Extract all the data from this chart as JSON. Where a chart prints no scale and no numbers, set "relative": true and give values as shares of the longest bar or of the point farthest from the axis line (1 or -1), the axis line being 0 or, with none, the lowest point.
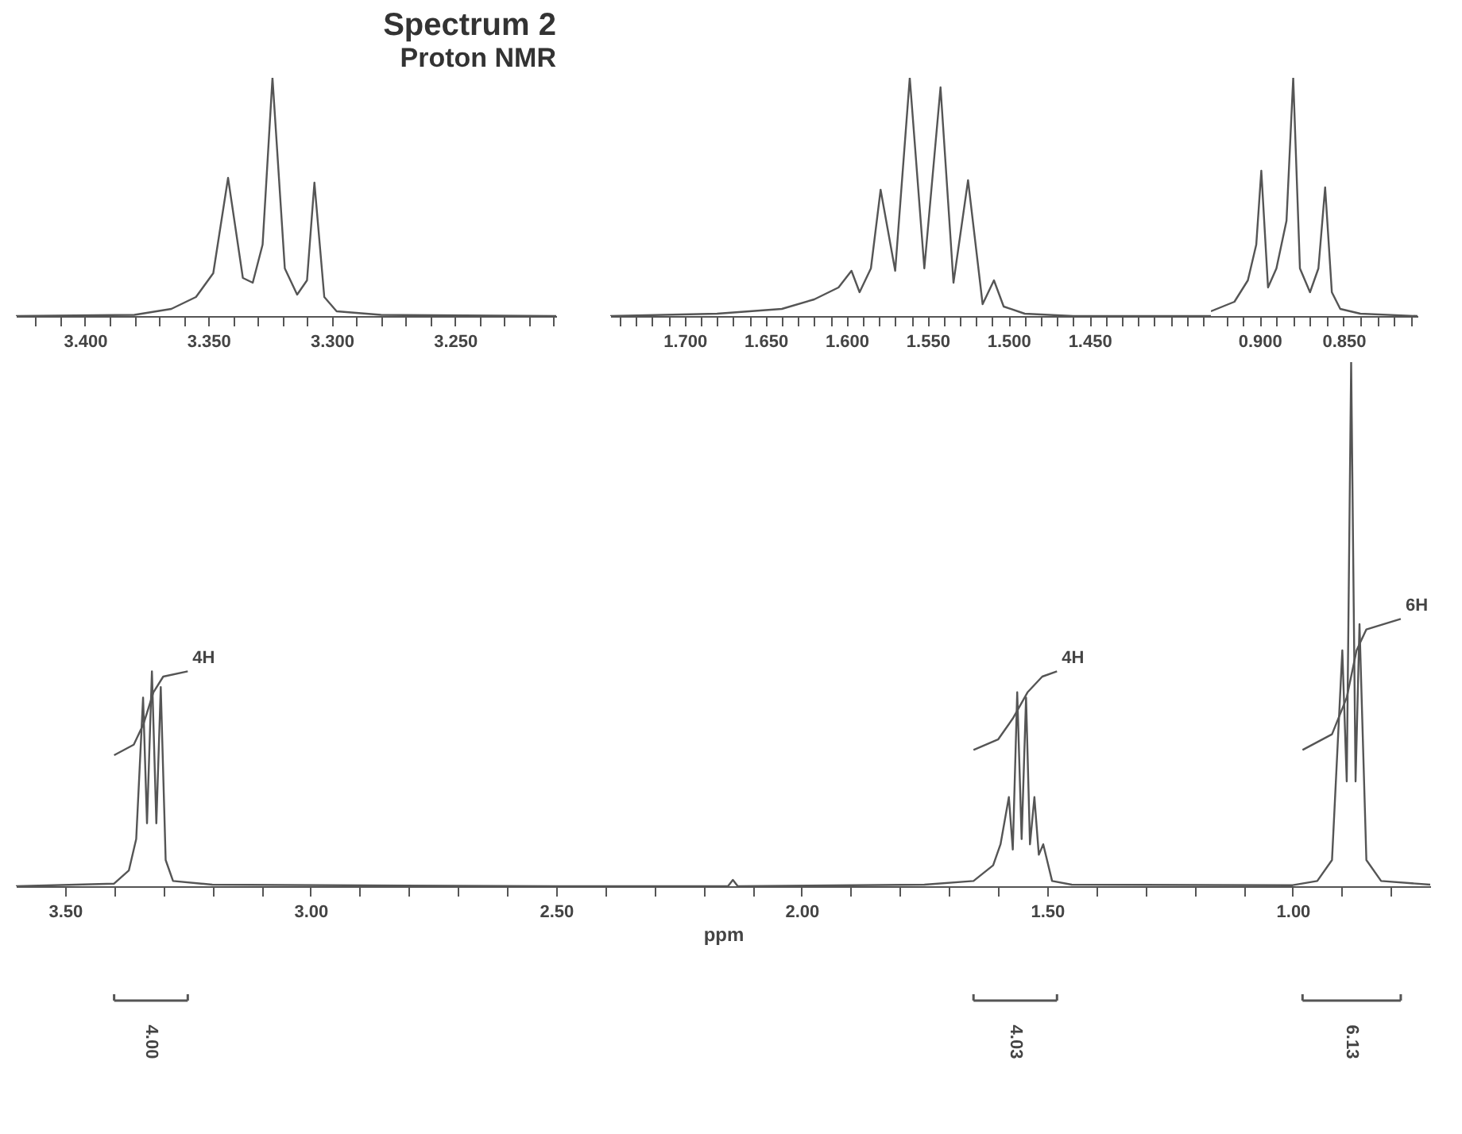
{
  "chart_data": [
    {
      "type": "line",
      "title": "Spectrum 2",
      "subtitle": "Proton NMR",
      "relative": true,
      "marker": "none",
      "grid": false,
      "xlim": [
        3.428,
        3.209
      ],
      "xticks": [
        {
          "value": 3.42,
          "label": null
        },
        {
          "value": 3.41,
          "label": null
        },
        {
          "value": 3.4,
          "label": "3.400"
        },
        {
          "value": 3.39,
          "label": null
        },
        {
          "value": 3.38,
          "label": null
        },
        {
          "value": 3.37,
          "label": null
        },
        {
          "value": 3.36,
          "label": null
        },
        {
          "value": 3.35,
          "label": "3.350"
        },
        {
          "value": 3.34,
          "label": null
        },
        {
          "value": 3.33,
          "label": null
        },
        {
          "value": 3.32,
          "label": null
        },
        {
          "value": 3.31,
          "label": null
        },
        {
          "value": 3.3,
          "label": "3.300"
        },
        {
          "value": 3.29,
          "label": null
        },
        {
          "value": 3.28,
          "label": null
        },
        {
          "value": 3.27,
          "label": null
        },
        {
          "value": 3.26,
          "label": null
        },
        {
          "value": 3.25,
          "label": "3.250"
        },
        {
          "value": 3.24,
          "label": null
        },
        {
          "value": 3.23,
          "label": null
        },
        {
          "value": 3.22,
          "label": null
        },
        {
          "value": 3.21,
          "label": null
        }
      ],
      "series": [
        {
          "color": "#555555",
          "x": [
            3.428,
            3.38,
            3.365,
            3.355,
            3.348,
            3.342,
            3.336,
            3.332,
            3.328,
            3.324,
            3.319,
            3.314,
            3.31,
            3.307,
            3.303,
            3.298,
            3.28,
            3.209
          ],
          "values": [
            0.0,
            0.005,
            0.03,
            0.08,
            0.18,
            0.58,
            0.16,
            0.14,
            0.3,
            1.0,
            0.2,
            0.09,
            0.15,
            0.56,
            0.08,
            0.02,
            0.005,
            0.0
          ]
        }
      ]
    },
    {
      "type": "line",
      "relative": true,
      "marker": "none",
      "grid": false,
      "xlim": [
        1.746,
        1.375
      ],
      "xticks": [
        {
          "value": 1.74,
          "label": null
        },
        {
          "value": 1.73,
          "label": null
        },
        {
          "value": 1.72,
          "label": null
        },
        {
          "value": 1.71,
          "label": null
        },
        {
          "value": 1.7,
          "label": "1.700"
        },
        {
          "value": 1.69,
          "label": null
        },
        {
          "value": 1.68,
          "label": null
        },
        {
          "value": 1.67,
          "label": null
        },
        {
          "value": 1.66,
          "label": null
        },
        {
          "value": 1.65,
          "label": "1.650"
        },
        {
          "value": 1.64,
          "label": null
        },
        {
          "value": 1.63,
          "label": null
        },
        {
          "value": 1.62,
          "label": null
        },
        {
          "value": 1.61,
          "label": null
        },
        {
          "value": 1.6,
          "label": "1.600"
        },
        {
          "value": 1.59,
          "label": null
        },
        {
          "value": 1.58,
          "label": null
        },
        {
          "value": 1.57,
          "label": null
        },
        {
          "value": 1.56,
          "label": null
        },
        {
          "value": 1.55,
          "label": "1.550"
        },
        {
          "value": 1.54,
          "label": null
        },
        {
          "value": 1.53,
          "label": null
        },
        {
          "value": 1.52,
          "label": null
        },
        {
          "value": 1.51,
          "label": null
        },
        {
          "value": 1.5,
          "label": "1.500"
        },
        {
          "value": 1.49,
          "label": null
        },
        {
          "value": 1.48,
          "label": null
        },
        {
          "value": 1.47,
          "label": null
        },
        {
          "value": 1.46,
          "label": null
        },
        {
          "value": 1.45,
          "label": "1.450"
        },
        {
          "value": 1.44,
          "label": null
        },
        {
          "value": 1.43,
          "label": null
        },
        {
          "value": 1.42,
          "label": null
        },
        {
          "value": 1.41,
          "label": null
        },
        {
          "value": 1.4,
          "label": null
        },
        {
          "value": 1.39,
          "label": null
        },
        {
          "value": 1.38,
          "label": null
        }
      ],
      "series": [
        {
          "color": "#555555",
          "x": [
            1.746,
            1.68,
            1.64,
            1.62,
            1.605,
            1.597,
            1.592,
            1.585,
            1.579,
            1.57,
            1.561,
            1.552,
            1.542,
            1.534,
            1.525,
            1.516,
            1.509,
            1.503,
            1.49,
            1.46,
            1.375
          ],
          "values": [
            0.0,
            0.01,
            0.03,
            0.07,
            0.12,
            0.19,
            0.1,
            0.2,
            0.53,
            0.19,
            1.0,
            0.2,
            0.96,
            0.14,
            0.57,
            0.05,
            0.15,
            0.04,
            0.01,
            0.0,
            0.0
          ]
        }
      ]
    },
    {
      "type": "line",
      "relative": true,
      "marker": "none",
      "grid": false,
      "xlim": [
        0.929,
        0.806
      ],
      "xticks": [
        {
          "value": 0.92,
          "label": null
        },
        {
          "value": 0.91,
          "label": null
        },
        {
          "value": 0.9,
          "label": "0.900"
        },
        {
          "value": 0.89,
          "label": null
        },
        {
          "value": 0.88,
          "label": null
        },
        {
          "value": 0.87,
          "label": null
        },
        {
          "value": 0.86,
          "label": null
        },
        {
          "value": 0.85,
          "label": "0.850"
        },
        {
          "value": 0.84,
          "label": null
        },
        {
          "value": 0.83,
          "label": null
        },
        {
          "value": 0.82,
          "label": null
        },
        {
          "value": 0.81,
          "label": null
        }
      ],
      "series": [
        {
          "color": "#555555",
          "x": [
            0.929,
            0.915,
            0.907,
            0.902,
            0.899,
            0.895,
            0.89,
            0.884,
            0.88,
            0.876,
            0.87,
            0.865,
            0.861,
            0.857,
            0.852,
            0.84,
            0.806
          ],
          "values": [
            0.02,
            0.06,
            0.15,
            0.3,
            0.61,
            0.12,
            0.2,
            0.4,
            1.0,
            0.2,
            0.1,
            0.2,
            0.54,
            0.1,
            0.03,
            0.01,
            0.0
          ]
        }
      ]
    },
    {
      "type": "line",
      "xlabel": "ppm",
      "relative": true,
      "marker": "none",
      "grid": false,
      "xlim": [
        3.6,
        0.72
      ],
      "xticks": [
        {
          "value": 3.5,
          "label": "3.50"
        },
        {
          "value": 3.4,
          "label": null
        },
        {
          "value": 3.3,
          "label": null
        },
        {
          "value": 3.2,
          "label": null
        },
        {
          "value": 3.1,
          "label": null
        },
        {
          "value": 3.0,
          "label": "3.00"
        },
        {
          "value": 2.9,
          "label": null
        },
        {
          "value": 2.8,
          "label": null
        },
        {
          "value": 2.7,
          "label": null
        },
        {
          "value": 2.6,
          "label": null
        },
        {
          "value": 2.5,
          "label": "2.50"
        },
        {
          "value": 2.4,
          "label": null
        },
        {
          "value": 2.3,
          "label": null
        },
        {
          "value": 2.2,
          "label": null
        },
        {
          "value": 2.1,
          "label": null
        },
        {
          "value": 2.0,
          "label": "2.00"
        },
        {
          "value": 1.9,
          "label": null
        },
        {
          "value": 1.8,
          "label": null
        },
        {
          "value": 1.7,
          "label": null
        },
        {
          "value": 1.6,
          "label": null
        },
        {
          "value": 1.5,
          "label": "1.50"
        },
        {
          "value": 1.4,
          "label": null
        },
        {
          "value": 1.3,
          "label": null
        },
        {
          "value": 1.2,
          "label": null
        },
        {
          "value": 1.1,
          "label": null
        },
        {
          "value": 1.0,
          "label": "1.00"
        },
        {
          "value": 0.9,
          "label": null
        },
        {
          "value": 0.8,
          "label": null
        }
      ],
      "series": [
        {
          "color": "#555555",
          "x": [
            3.6,
            3.4,
            3.37,
            3.355,
            3.341,
            3.333,
            3.323,
            3.314,
            3.305,
            3.295,
            3.28,
            3.2,
            2.5,
            2.15,
            2.14,
            2.13,
            1.75,
            1.65,
            1.61,
            1.595,
            1.578,
            1.57,
            1.561,
            1.552,
            1.543,
            1.535,
            1.526,
            1.517,
            1.508,
            1.49,
            1.45,
            1.0,
            0.95,
            0.92,
            0.899,
            0.89,
            0.881,
            0.872,
            0.864,
            0.85,
            0.82,
            0.72
          ],
          "values": [
            0.0,
            0.005,
            0.03,
            0.09,
            0.36,
            0.12,
            0.41,
            0.12,
            0.38,
            0.05,
            0.01,
            0.003,
            0.0,
            0.0,
            0.012,
            0.0,
            0.003,
            0.01,
            0.04,
            0.08,
            0.17,
            0.07,
            0.37,
            0.09,
            0.36,
            0.08,
            0.17,
            0.06,
            0.08,
            0.01,
            0.003,
            0.002,
            0.01,
            0.05,
            0.45,
            0.2,
            1.0,
            0.2,
            0.5,
            0.05,
            0.01,
            0.003
          ]
        },
        {
          "color": "#555555",
          "x": [
            3.4,
            3.36,
            3.34,
            3.32,
            3.3,
            3.25
          ],
          "values": [
            0.25,
            0.27,
            0.31,
            0.37,
            0.4,
            0.41
          ]
        },
        {
          "color": "#555555",
          "x": [
            1.65,
            1.6,
            1.57,
            1.54,
            1.51,
            1.48
          ],
          "values": [
            0.26,
            0.28,
            0.32,
            0.37,
            0.4,
            0.41
          ]
        },
        {
          "color": "#555555",
          "x": [
            0.98,
            0.92,
            0.89,
            0.87,
            0.85,
            0.78
          ],
          "values": [
            0.26,
            0.29,
            0.36,
            0.45,
            0.49,
            0.51
          ]
        }
      ],
      "annotations": [
        {
          "text": "4H",
          "x": 3.25,
          "y": 0.41
        },
        {
          "text": "4H",
          "x": 1.48,
          "y": 0.41
        },
        {
          "text": "6H",
          "x": 0.78,
          "y": 0.51
        },
        "4.00",
        "4.03",
        "6.13"
      ]
    }
  ]
}
